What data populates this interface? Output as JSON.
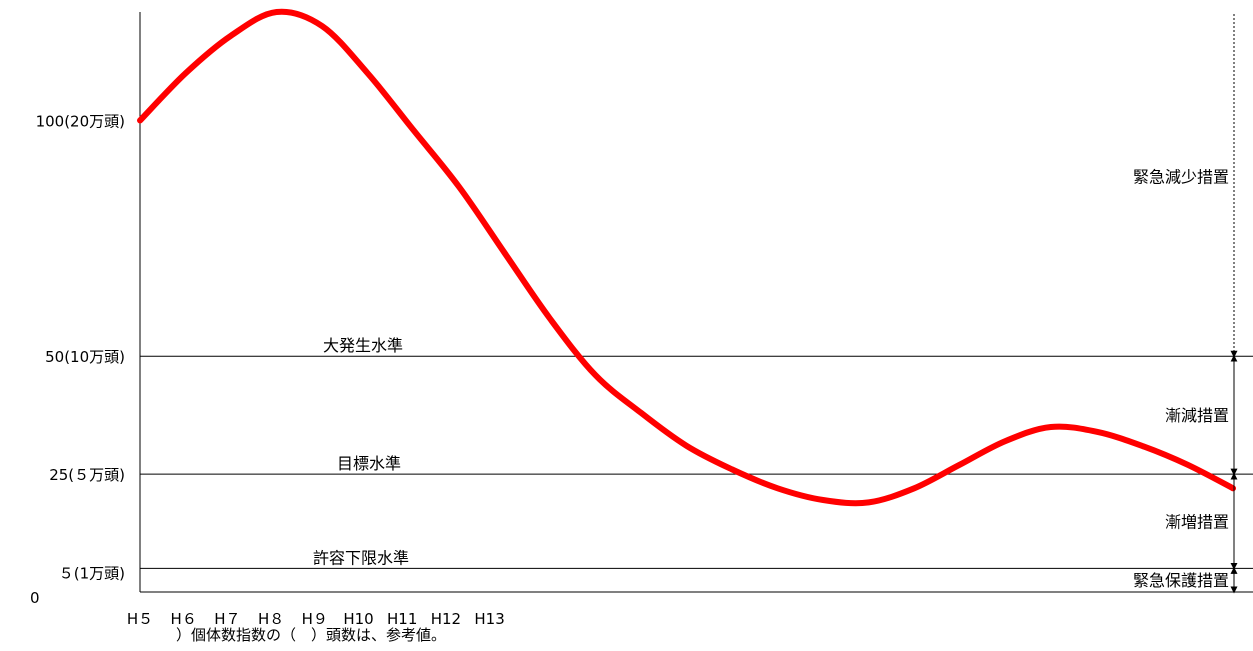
{
  "chart_data": {
    "type": "line",
    "title": "",
    "xlabel": "",
    "ylabel": "",
    "categories": [
      "H５",
      "H６",
      "H７",
      "H８",
      "H９",
      "H10",
      "H11",
      "H12",
      "H13"
    ],
    "y_ticks": [
      {
        "value": 100,
        "label": "100(20万頭)"
      },
      {
        "value": 50,
        "label": "50(10万頭)"
      },
      {
        "value": 25,
        "label": "25(５万頭)"
      },
      {
        "value": 5,
        "label": "５(1万頭)"
      },
      {
        "value": 0,
        "label": "0"
      }
    ],
    "ylim": [
      0,
      123
    ],
    "levels": [
      {
        "value": 50,
        "label": "大発生水準"
      },
      {
        "value": 25,
        "label": "目標水準"
      },
      {
        "value": 5,
        "label": "許容下限水準"
      }
    ],
    "measures": [
      {
        "from": 50,
        "to": 123,
        "label": "緊急減少措置"
      },
      {
        "from": 25,
        "to": 50,
        "label": "漸減措置"
      },
      {
        "from": 5,
        "to": 25,
        "label": "漸増措置"
      },
      {
        "from": 0,
        "to": 5,
        "label": "緊急保護措置"
      }
    ],
    "series": [
      {
        "color": "#ff0000",
        "points": [
          [
            0,
            100
          ],
          [
            1,
            110
          ],
          [
            2,
            118
          ],
          [
            3,
            123
          ],
          [
            4,
            120
          ],
          [
            5,
            110
          ],
          [
            6,
            98
          ],
          [
            7,
            86
          ],
          [
            8,
            72
          ],
          [
            9,
            58
          ],
          [
            10,
            46
          ],
          [
            11,
            38
          ],
          [
            12,
            31
          ],
          [
            13,
            26
          ],
          [
            14,
            22
          ],
          [
            15,
            19.5
          ],
          [
            16,
            19
          ],
          [
            17,
            22
          ],
          [
            18,
            27
          ],
          [
            19,
            32
          ],
          [
            20,
            35
          ],
          [
            21,
            34
          ],
          [
            22,
            31
          ],
          [
            23,
            27
          ],
          [
            24,
            22
          ]
        ]
      }
    ],
    "note": "）個体数指数の（　）頭数は、参考値。",
    "grid": false,
    "legend": "none"
  }
}
